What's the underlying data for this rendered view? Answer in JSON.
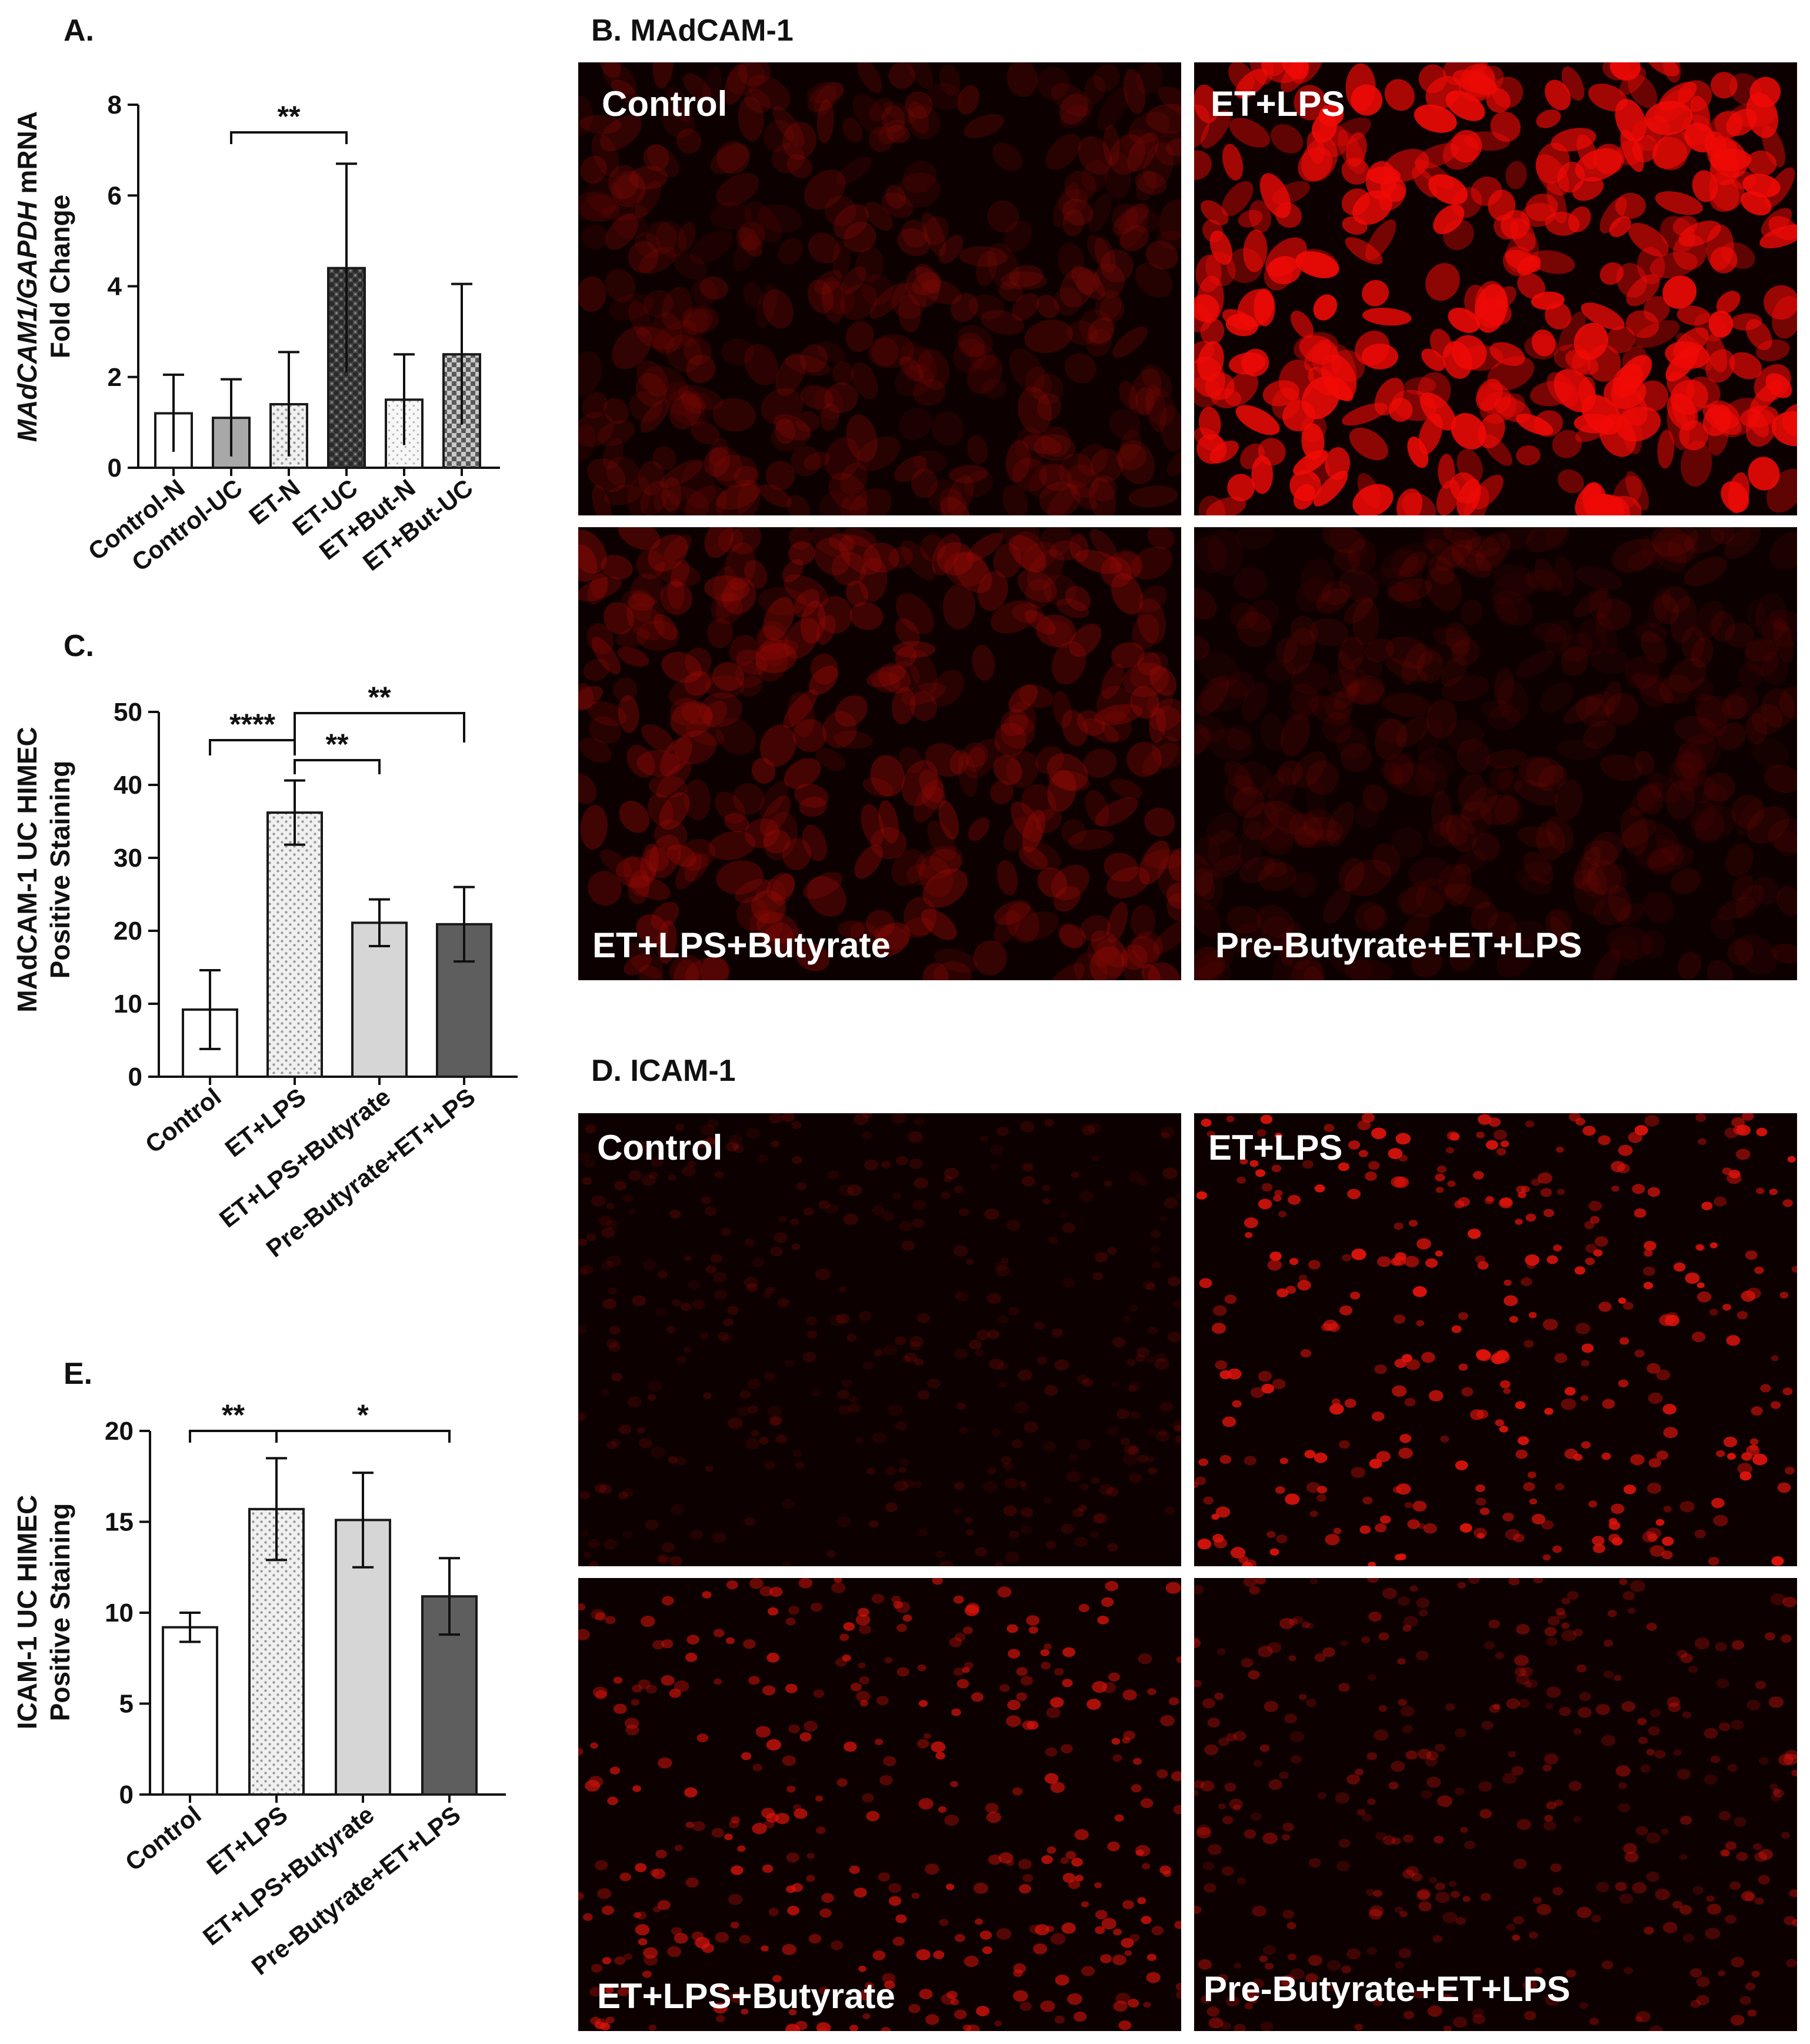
{
  "chart_data": [
    {
      "panel": "A.",
      "type": "bar",
      "ylabel_italic": "MAdCAM1/GAPDH",
      "ylabel_rest": " mRNA",
      "ylabel_line2": "Fold Change",
      "ylim": [
        0,
        8
      ],
      "yticks": [
        "0",
        "2",
        "4",
        "6",
        "8"
      ],
      "categories": [
        "Control-N",
        "Control-UC",
        "ET-N",
        "ET-UC",
        "ET+But-N",
        "ET+But-UC"
      ],
      "values": [
        1.2,
        1.1,
        1.4,
        4.4,
        1.5,
        2.5
      ],
      "errors": [
        0.85,
        0.85,
        1.15,
        2.3,
        1.0,
        1.55
      ],
      "fills": [
        "white",
        "gray",
        "dotted",
        "dark-check",
        "dotted-light",
        "check"
      ],
      "significance": [
        {
          "from": 1,
          "to": 3,
          "label": "**"
        }
      ]
    },
    {
      "panel": "C.",
      "type": "bar",
      "ylabel": "MAdCAM-1 UC HIMEC",
      "ylabel_line2": "Positive Staining",
      "ylim": [
        0,
        50
      ],
      "yticks": [
        "0",
        "10",
        "20",
        "30",
        "40",
        "50"
      ],
      "categories": [
        "Control",
        "ET+LPS",
        "ET+LPS+Butyrate",
        "Pre-Butyrate+ET+LPS"
      ],
      "values": [
        9.2,
        36.2,
        21.1,
        20.9
      ],
      "errors": [
        5.4,
        4.4,
        3.2,
        5.1
      ],
      "fills": [
        "white",
        "dotted",
        "light-gray",
        "dark-gray"
      ],
      "significance": [
        {
          "from": 0,
          "to": 1,
          "label": "****"
        },
        {
          "from": 1,
          "to": 2,
          "label": "**"
        },
        {
          "from": 1,
          "to": 3,
          "label": "**"
        }
      ]
    },
    {
      "panel": "E.",
      "type": "bar",
      "ylabel": "ICAM-1 UC HIMEC",
      "ylabel_line2": "Positive Staining",
      "ylim": [
        0,
        20
      ],
      "yticks": [
        "0",
        "5",
        "10",
        "15",
        "20"
      ],
      "categories": [
        "Control",
        "ET+LPS",
        "ET+LPS+Butyrate",
        "Pre-Butyrate+ET+LPS"
      ],
      "values": [
        9.2,
        15.7,
        15.1,
        10.9
      ],
      "errors": [
        0.8,
        2.8,
        2.6,
        2.1
      ],
      "fills": [
        "white",
        "dotted",
        "light-gray",
        "dark-gray"
      ],
      "significance": [
        {
          "from": 0,
          "to": 1,
          "label": "**"
        },
        {
          "from": 1,
          "to": 3,
          "label": "*"
        }
      ]
    }
  ],
  "micrographs": {
    "B": {
      "title": "B. MAdCAM-1",
      "panels": [
        {
          "label": "Control",
          "intensity": 0.35,
          "style": "mesh-dim"
        },
        {
          "label": "ET+LPS",
          "intensity": 1.0,
          "style": "mesh-bright"
        },
        {
          "label": "ET+LPS+Butyrate",
          "intensity": 0.45,
          "style": "mesh-dim"
        },
        {
          "label": "Pre-Butyrate+ET+LPS",
          "intensity": 0.25,
          "style": "mesh-dim"
        }
      ]
    },
    "D": {
      "title": "D. ICAM-1",
      "panels": [
        {
          "label": "Control",
          "intensity": 0.2,
          "style": "dots"
        },
        {
          "label": "ET+LPS",
          "intensity": 1.0,
          "style": "dots"
        },
        {
          "label": "ET+LPS+Butyrate",
          "intensity": 0.8,
          "style": "dots"
        },
        {
          "label": "Pre-Butyrate+ET+LPS",
          "intensity": 0.45,
          "style": "dots"
        }
      ]
    }
  },
  "colors": {
    "bar_stroke": "#1a1a1a",
    "light_gray": "#d6d6d6",
    "mid_gray": "#a8a8a8",
    "dark_gray": "#5e5e5e",
    "micro_bg": "#0c0000",
    "fluorescence": "#e0140c"
  }
}
